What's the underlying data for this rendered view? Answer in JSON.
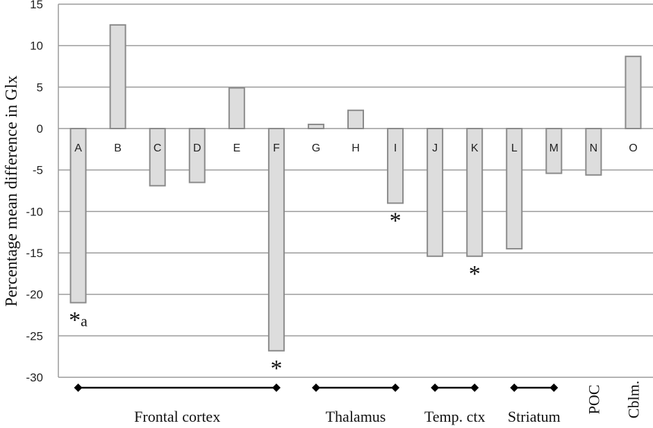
{
  "chart_data": {
    "type": "bar",
    "ylabel": "Percentage mean difference in Glx",
    "ylim": [
      -30,
      15
    ],
    "yticks": [
      15,
      10,
      5,
      0,
      -5,
      -10,
      -15,
      -20,
      -25,
      -30
    ],
    "grid": true,
    "categories": [
      "A",
      "B",
      "C",
      "D",
      "E",
      "F",
      "G",
      "H",
      "I",
      "J",
      "K",
      "L",
      "M",
      "N",
      "O"
    ],
    "values": [
      -21,
      12.5,
      -6.9,
      -6.5,
      4.9,
      -26.8,
      0.5,
      2.2,
      -9.0,
      -15.4,
      -15.4,
      -14.5,
      -5.4,
      -5.6,
      8.7
    ],
    "annotations": [
      {
        "category": "A",
        "text": "*a"
      },
      {
        "category": "F",
        "text": "*"
      },
      {
        "category": "I",
        "text": "*"
      },
      {
        "category": "K",
        "text": "*"
      }
    ],
    "groups": [
      {
        "label": "Frontal cortex",
        "from": "A",
        "to": "F",
        "bracket": true
      },
      {
        "label": "Thalamus",
        "from": "G",
        "to": "I",
        "bracket": true
      },
      {
        "label": "Temp. ctx",
        "from": "J",
        "to": "K",
        "bracket": true
      },
      {
        "label": "Striatum",
        "from": "L",
        "to": "M",
        "bracket": true
      },
      {
        "label": "POC",
        "from": "N",
        "to": "N",
        "bracket": false
      },
      {
        "label": "Cblm.",
        "from": "O",
        "to": "O",
        "bracket": false
      }
    ],
    "colors": {
      "bar_fill": "#dddddd",
      "bar_stroke": "#8a8a8a",
      "grid": "#9a9a9a"
    }
  }
}
